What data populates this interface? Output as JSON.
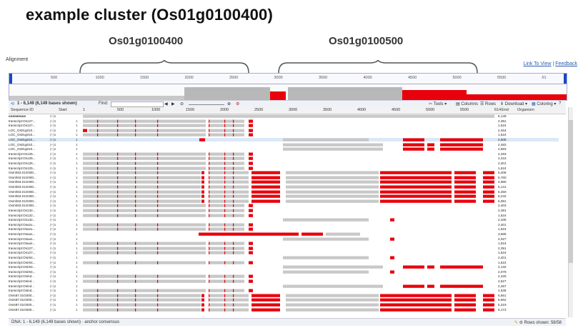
{
  "slide": {
    "title": "example cluster (Os01g0100400)",
    "genes": [
      "Os01g0100400",
      "Os01g0100500"
    ]
  },
  "app": {
    "alignment_label": "Alignment",
    "link_to_view": "Link To View",
    "separator": " | ",
    "feedback": "Feedback"
  },
  "ruler": {
    "ticks": [
      "500",
      "1000",
      "1500",
      "2000",
      "2500",
      "3000",
      "3500",
      "4000",
      "4500",
      "5000",
      "5500",
      "61"
    ]
  },
  "toolbar": {
    "range": "1 - 6,149 (6,149 bases shown)",
    "find_label": "Find:",
    "tools": "Tools",
    "columns": "Columns",
    "rows": "Rows",
    "download": "Download",
    "coloring": "Coloring"
  },
  "header": {
    "sequence_id": "Sequence ID",
    "start": "Start",
    "ticks": [
      "1",
      "500",
      "1000",
      "1500",
      "2000",
      "2500",
      "3000",
      "3500",
      "4000",
      "4500",
      "5000",
      "5500",
      "614"
    ],
    "end": "End",
    "organism": "Organism"
  },
  "rows": [
    {
      "id": "consensus",
      "strand": "(+)1",
      "start": "",
      "end": "6,149",
      "p": "cons"
    },
    {
      "id": "transcript:Os127...",
      "strand": "(+)1",
      "start": "1",
      "end": "2,391",
      "p": "g1"
    },
    {
      "id": "transcript:Os127...",
      "strand": "(+)1",
      "start": "1",
      "end": "1,524",
      "p": "g1"
    },
    {
      "id": "LOC_Os01g010...",
      "strand": "(+)1",
      "start": "1",
      "end": "2,464",
      "p": "g1r"
    },
    {
      "id": "LOC_Os01g010...",
      "strand": "(+)1",
      "start": "1",
      "end": "1,524",
      "p": "g1"
    },
    {
      "id": "LOC_Os01g010...",
      "strand": "(+)1",
      "start": "1",
      "end": "2,508",
      "p": "sel"
    },
    {
      "id": "LOC_Os01g010...",
      "strand": "(+)1",
      "start": "1",
      "end": "2,482",
      "p": "g2r"
    },
    {
      "id": "LOC_Os01g010...",
      "strand": "(+)1",
      "start": "1",
      "end": "2,583",
      "p": "g2r"
    },
    {
      "id": "transcript:Os125...",
      "strand": "(+)1",
      "start": "1",
      "end": "2,293",
      "p": "g1"
    },
    {
      "id": "transcript:Os125...",
      "strand": "(+)1",
      "start": "1",
      "end": "2,416",
      "p": "g1"
    },
    {
      "id": "transcript:Os125...",
      "strand": "(+)1",
      "start": "1",
      "end": "2,401",
      "p": "g1"
    },
    {
      "id": "transcript:Os125...",
      "strand": "(+)1",
      "start": "1",
      "end": "1,524",
      "p": "g1"
    },
    {
      "id": "Osmh63.01G000...",
      "strand": "(+)1",
      "start": "1",
      "end": "5,208",
      "p": "big"
    },
    {
      "id": "Osmh63.01G000...",
      "strand": "(+)1",
      "start": "1",
      "end": "5,760",
      "p": "big"
    },
    {
      "id": "Osmh63.01G000...",
      "strand": "(+)1",
      "start": "1",
      "end": "4,980",
      "p": "big"
    },
    {
      "id": "Osmh63.01G000...",
      "strand": "(+)1",
      "start": "1",
      "end": "5,141",
      "p": "big"
    },
    {
      "id": "Osmh63.01G000...",
      "strand": "(+)1",
      "start": "1",
      "end": "5,450",
      "p": "big"
    },
    {
      "id": "Osmh63.01G000...",
      "strand": "(+)1",
      "start": "1",
      "end": "5,242",
      "p": "big"
    },
    {
      "id": "Osmh63.01G000...",
      "strand": "(+)1",
      "start": "1",
      "end": "5,081",
      "p": "big"
    },
    {
      "id": "Osmh63.01G000...",
      "strand": "(+)1",
      "start": "1",
      "end": "2,403",
      "p": "g1"
    },
    {
      "id": "transcript:Os132...",
      "strand": "(+)1",
      "start": "1",
      "end": "2,391",
      "p": "g1"
    },
    {
      "id": "transcript:Os132...",
      "strand": "(+)1",
      "start": "1",
      "end": "1,524",
      "p": "g1"
    },
    {
      "id": "transcript:Os132...",
      "strand": "(+)1",
      "start": "1",
      "end": "2,335",
      "p": "g2"
    },
    {
      "id": "transcript:Osazu...",
      "strand": "(+)1",
      "start": "1",
      "end": "2,401",
      "p": "g1"
    },
    {
      "id": "transcript:Osazu...",
      "strand": "(+)1",
      "start": "1",
      "end": "1,524",
      "p": "g1"
    },
    {
      "id": "transcript:Osaus...",
      "strand": "(+)1",
      "start": "1",
      "end": "3,585",
      "p": "mid"
    },
    {
      "id": "transcript:Osaus...",
      "strand": "(+)1",
      "start": "1",
      "end": "4,027",
      "p": "g2"
    },
    {
      "id": "transcript:Osaus...",
      "strand": "(+)1",
      "start": "1",
      "end": "1,524",
      "p": "g1"
    },
    {
      "id": "transcript:Os127...",
      "strand": "(+)1",
      "start": "1",
      "end": "2,391",
      "p": "g1"
    },
    {
      "id": "transcript:Os127...",
      "strand": "(+)1",
      "start": "1",
      "end": "1,524",
      "p": "g1"
    },
    {
      "id": "transcript:Osir64...",
      "strand": "(+)1",
      "start": "1",
      "end": "2,401",
      "p": "g2"
    },
    {
      "id": "transcript:Osir64...",
      "strand": "(+)1",
      "start": "1",
      "end": "1,524",
      "p": "g1"
    },
    {
      "id": "transcript:Osir64...",
      "strand": "(+)1",
      "start": "1",
      "end": "2,132",
      "p": "g2r"
    },
    {
      "id": "transcript:Osir64...",
      "strand": "(+)1",
      "start": "1",
      "end": "2,079",
      "p": "g2"
    },
    {
      "id": "transcript:Osind...",
      "strand": "(+)1",
      "start": "1",
      "end": "2,426",
      "p": "g1"
    },
    {
      "id": "transcript:Osind...",
      "strand": "(+)1",
      "start": "1",
      "end": "2,527",
      "p": "g1"
    },
    {
      "id": "transcript:Osind...",
      "strand": "(+)1",
      "start": "1",
      "end": "2,487",
      "p": "g2r"
    },
    {
      "id": "transcript:Osind...",
      "strand": "(+)1",
      "start": "1",
      "end": "1,536",
      "p": "g1"
    },
    {
      "id": "Osrs87.01G000...",
      "strand": "(+)1",
      "start": "1",
      "end": "5,561",
      "p": "big"
    },
    {
      "id": "Osrs87.01G000...",
      "strand": "(+)1",
      "start": "1",
      "end": "5,662",
      "p": "big"
    },
    {
      "id": "Osrs87.01G000...",
      "strand": "(+)1",
      "start": "1",
      "end": "5,319",
      "p": "big"
    },
    {
      "id": "Osrs87.01G000...",
      "strand": "(+)1",
      "start": "1",
      "end": "6,173",
      "p": "big"
    }
  ],
  "status": {
    "left": "DNA: 1 - 6,149 (6,149 bases shown) · anchor consensus",
    "right": "Rows shown: 58/58"
  },
  "colors": {
    "match": "#c8c8c8",
    "mismatch": "#e8000b",
    "selected_row": "#dbe8f6"
  }
}
